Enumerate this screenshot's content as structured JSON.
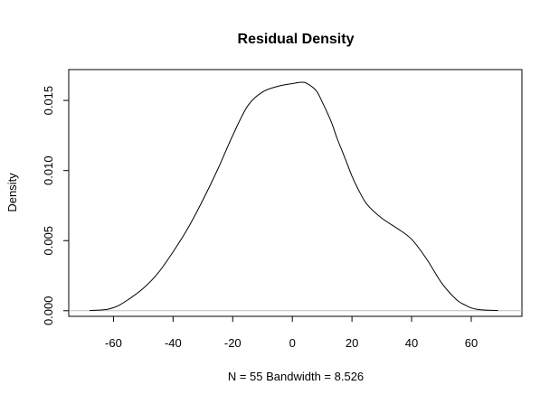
{
  "chart_data": {
    "type": "line",
    "title": "Residual Density",
    "xlabel": "N = 55   Bandwidth = 8.526",
    "ylabel": "Density",
    "xlim": [
      -75,
      77
    ],
    "ylim": [
      -0.0004,
      0.0172
    ],
    "x_ticks": [
      -60,
      -40,
      -20,
      0,
      20,
      40,
      60
    ],
    "x_tick_labels": [
      "-60",
      "-40",
      "-20",
      "0",
      "20",
      "40",
      "60"
    ],
    "y_ticks": [
      0.0,
      0.005,
      0.01,
      0.015
    ],
    "y_tick_labels": [
      "0.000",
      "0.005",
      "0.010",
      "0.015"
    ],
    "baseline": 0,
    "baseline_color": "#bebebe",
    "line_color": "#000000",
    "grid": false,
    "series": [
      {
        "x": [
          -68,
          -65,
          -62,
          -60,
          -58,
          -55,
          -50,
          -45,
          -40,
          -35,
          -30,
          -25,
          -20,
          -15,
          -10,
          -5,
          0,
          3,
          5,
          8,
          10,
          13,
          15,
          18,
          20,
          22,
          25,
          30,
          35,
          40,
          45,
          50,
          55,
          58,
          60,
          62,
          65,
          69
        ],
        "y": [
          1e-05,
          4e-05,
          0.0001,
          0.00022,
          0.0004,
          0.0008,
          0.0016,
          0.0027,
          0.0042,
          0.0059,
          0.0079,
          0.0101,
          0.0125,
          0.0146,
          0.0156,
          0.016,
          0.0162,
          0.0163,
          0.0162,
          0.0157,
          0.0149,
          0.0135,
          0.0123,
          0.0107,
          0.0096,
          0.0087,
          0.0076,
          0.0066,
          0.0059,
          0.0051,
          0.0037,
          0.002,
          0.0008,
          0.0004,
          0.0002,
          0.0001,
          4e-05,
          1e-05
        ]
      }
    ]
  }
}
